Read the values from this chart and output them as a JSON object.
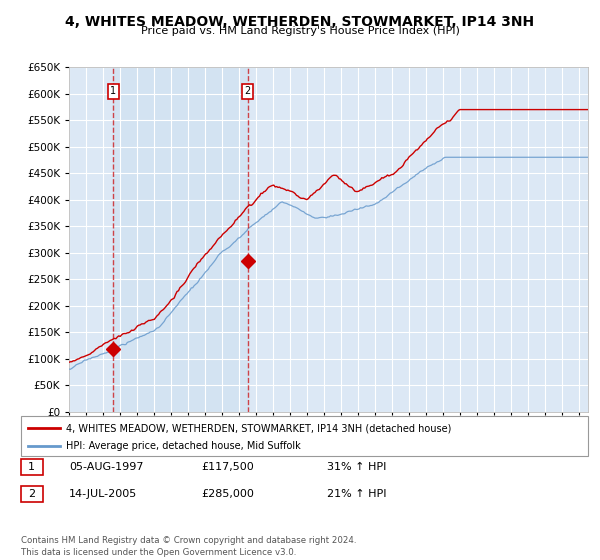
{
  "title": "4, WHITES MEADOW, WETHERDEN, STOWMARKET, IP14 3NH",
  "subtitle": "Price paid vs. HM Land Registry's House Price Index (HPI)",
  "hpi_color": "#6699cc",
  "price_color": "#cc0000",
  "background_color": "#dce8f5",
  "highlight_color": "#ccdcf0",
  "grid_color": "#ffffff",
  "ylim": [
    0,
    650000
  ],
  "yticks": [
    0,
    50000,
    100000,
    150000,
    200000,
    250000,
    300000,
    350000,
    400000,
    450000,
    500000,
    550000,
    600000,
    650000
  ],
  "sale1_date": 1997.6,
  "sale1_price": 117500,
  "sale1_label": "1",
  "sale2_date": 2005.5,
  "sale2_price": 285000,
  "sale2_label": "2",
  "legend_line1": "4, WHITES MEADOW, WETHERDEN, STOWMARKET, IP14 3NH (detached house)",
  "legend_line2": "HPI: Average price, detached house, Mid Suffolk",
  "table_row1": [
    "1",
    "05-AUG-1997",
    "£117,500",
    "31% ↑ HPI"
  ],
  "table_row2": [
    "2",
    "14-JUL-2005",
    "£285,000",
    "21% ↑ HPI"
  ],
  "footer": "Contains HM Land Registry data © Crown copyright and database right 2024.\nThis data is licensed under the Open Government Licence v3.0."
}
